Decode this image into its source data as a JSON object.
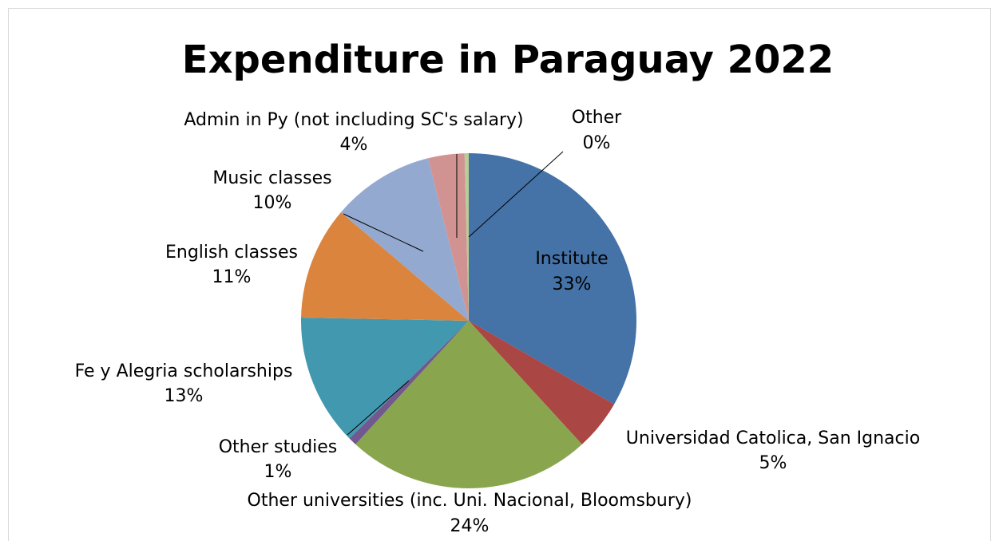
{
  "chart_data": {
    "type": "pie",
    "title": "Expenditure in Paraguay 2022",
    "categories": [
      "Institute",
      "Universidad Catolica, San Ignacio",
      "Other universities (inc. Uni. Nacional, Bloomsbury)",
      "Other studies",
      "Fe y Alegria scholarships",
      "English classes",
      "Music classes",
      "Admin in Py (not including SC's salary)",
      "Other"
    ],
    "values": [
      33.3,
      4.9,
      23.6,
      0.8,
      12.7,
      10.9,
      9.9,
      3.5,
      0.4
    ],
    "value_labels": [
      "33%",
      "5%",
      "24%",
      "1%",
      "13%",
      "11%",
      "10%",
      "4%",
      "0%"
    ],
    "colors": [
      "#4572a7",
      "#aa4643",
      "#89a54e",
      "#71588f",
      "#4198af",
      "#db843d",
      "#93a9cf",
      "#d19392",
      "#b9cd96"
    ]
  }
}
